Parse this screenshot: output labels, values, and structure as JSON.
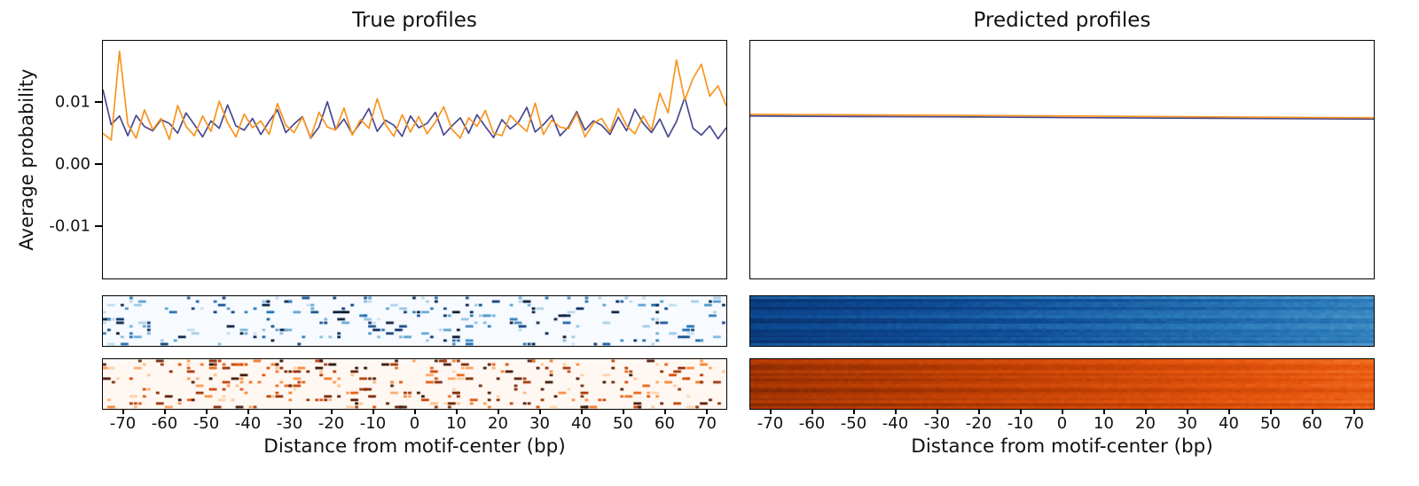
{
  "figure": {
    "left_title": "True profiles",
    "right_title": "Predicted profiles",
    "ylabel": "Average probability",
    "xlabel": "Distance from motif-center (bp)",
    "ytick_labels": [
      "0.01",
      "0.00",
      "-0.01"
    ],
    "ytick_values": [
      0.01,
      0.0,
      -0.01
    ],
    "xtick_values": [
      -70,
      -60,
      -50,
      -40,
      -30,
      -20,
      -10,
      0,
      10,
      20,
      30,
      40,
      50,
      60,
      70
    ],
    "xlim": [
      -75,
      75
    ],
    "colors": {
      "series_blue": "#484890",
      "series_orange": "#f8941d",
      "blues_dark": "#08306b",
      "oranges_dark": "#7f2704"
    }
  },
  "chart_data": [
    {
      "id": "true-profiles-line",
      "type": "line",
      "title": "True profiles",
      "xlabel": "Distance from motif-center (bp)",
      "ylabel": "Average probability",
      "xlim": [
        -75,
        75
      ],
      "ylim": [
        -0.0186,
        0.02
      ],
      "yticks": [
        0.01,
        0.0,
        -0.01
      ],
      "xticks": [
        -70,
        -60,
        -50,
        -40,
        -30,
        -20,
        -10,
        0,
        10,
        20,
        30,
        40,
        50,
        60,
        70
      ],
      "value_unit": "1e-3 average probability",
      "x_start": -75,
      "x_step": 2,
      "series": [
        {
          "name": "strand-1-blue",
          "color": "#484890",
          "values": [
            12.1,
            6.4,
            7.8,
            4.6,
            7.9,
            6.1,
            5.4,
            7.2,
            6.6,
            5.0,
            8.3,
            6.4,
            4.4,
            7.0,
            5.8,
            9.6,
            6.2,
            5.5,
            7.4,
            4.8,
            6.9,
            8.8,
            5.1,
            6.5,
            7.7,
            4.2,
            6.0,
            10.1,
            5.6,
            7.3,
            4.9,
            6.7,
            9.0,
            5.3,
            7.1,
            6.3,
            4.5,
            7.8,
            5.9,
            6.6,
            8.4,
            4.7,
            6.2,
            7.5,
            5.0,
            8.0,
            6.1,
            4.3,
            7.2,
            5.7,
            6.8,
            9.2,
            5.2,
            6.4,
            7.9,
            4.6,
            6.0,
            8.5,
            5.5,
            7.0,
            6.3,
            4.8,
            7.6,
            5.4,
            8.9,
            6.6,
            5.1,
            7.3,
            4.4,
            6.9,
            10.8,
            5.8,
            4.7,
            6.2,
            4.1,
            5.9
          ]
        },
        {
          "name": "strand-2-orange",
          "color": "#f8941d",
          "values": [
            5.0,
            3.9,
            18.3,
            6.5,
            4.2,
            8.8,
            5.6,
            7.4,
            4.0,
            9.5,
            6.1,
            4.6,
            7.8,
            5.3,
            10.2,
            6.7,
            4.4,
            8.1,
            5.9,
            7.0,
            4.8,
            9.8,
            6.3,
            5.1,
            7.6,
            4.3,
            8.4,
            6.0,
            5.5,
            9.1,
            4.7,
            7.2,
            5.8,
            10.6,
            6.4,
            4.5,
            8.0,
            5.2,
            7.7,
            4.9,
            6.8,
            9.3,
            5.6,
            4.2,
            7.5,
            6.1,
            8.7,
            5.0,
            4.6,
            7.9,
            6.5,
            5.3,
            9.9,
            4.8,
            7.1,
            6.0,
            5.7,
            8.2,
            4.4,
            6.6,
            7.4,
            5.2,
            9.0,
            6.2,
            4.9,
            7.8,
            5.5,
            11.5,
            8.3,
            16.9,
            10.4,
            13.9,
            16.2,
            11.0,
            12.7,
            9.4
          ]
        }
      ]
    },
    {
      "id": "predicted-profiles-line",
      "type": "line",
      "title": "Predicted profiles",
      "xlabel": "Distance from motif-center (bp)",
      "xlim": [
        -75,
        75
      ],
      "ylim": [
        -0.0186,
        0.02
      ],
      "yticks": [
        0.01,
        0.0,
        -0.01
      ],
      "xticks": [
        -70,
        -60,
        -50,
        -40,
        -30,
        -20,
        -10,
        0,
        10,
        20,
        30,
        40,
        50,
        60,
        70
      ],
      "value_unit": "1e-3 average probability",
      "x_start": -75,
      "x_step": 25,
      "series": [
        {
          "name": "strand-1-blue",
          "color": "#484890",
          "values": [
            7.8,
            7.72,
            7.65,
            7.55,
            7.45,
            7.38,
            7.3
          ]
        },
        {
          "name": "strand-2-orange",
          "color": "#f8941d",
          "values": [
            8.05,
            7.98,
            7.9,
            7.8,
            7.7,
            7.6,
            7.5
          ]
        }
      ]
    },
    {
      "id": "true-heatmap-strand-1",
      "type": "heatmap",
      "style": "sparse",
      "colormap": "Blues",
      "rows": 14,
      "cols": 141,
      "density": 0.13,
      "x_range": [
        -75,
        75
      ],
      "note": "sparse speckled observed per-example counts on near-white background"
    },
    {
      "id": "true-heatmap-strand-2",
      "type": "heatmap",
      "style": "sparse",
      "colormap": "Oranges",
      "rows": 14,
      "cols": 141,
      "density": 0.16,
      "x_range": [
        -75,
        75
      ],
      "note": "sparse speckled observed per-example counts on near-white background"
    },
    {
      "id": "predicted-heatmap-strand-1",
      "type": "heatmap",
      "style": "dense",
      "colormap": "Blues",
      "rows": 18,
      "cols": 141,
      "x_range": [
        -75,
        75
      ],
      "gradient": "dark at left/center fading lighter toward right edge, row-wise striping"
    },
    {
      "id": "predicted-heatmap-strand-2",
      "type": "heatmap",
      "style": "dense",
      "colormap": "Oranges",
      "rows": 18,
      "cols": 141,
      "x_range": [
        -75,
        75
      ],
      "gradient": "dark at left/center fading lighter toward right edge, row-wise striping"
    }
  ]
}
